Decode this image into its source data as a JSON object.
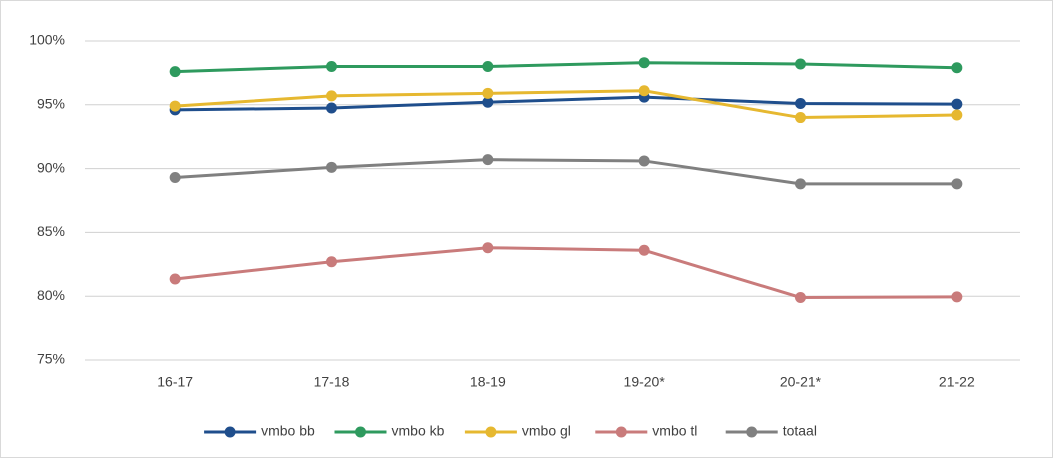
{
  "chart_data": {
    "type": "line",
    "categories": [
      "16-17",
      "17-18",
      "18-19",
      "19-20*",
      "20-21*",
      "21-22"
    ],
    "series": [
      {
        "name": "vmbo bb",
        "color": "#1f4e8c",
        "values": [
          94.6,
          94.75,
          95.2,
          95.6,
          95.1,
          95.05
        ]
      },
      {
        "name": "vmbo kb",
        "color": "#2e9a5e",
        "values": [
          97.6,
          98.0,
          98.0,
          98.3,
          98.2,
          97.9
        ]
      },
      {
        "name": "vmbo gl",
        "color": "#e6b830",
        "values": [
          94.9,
          95.7,
          95.9,
          96.1,
          94.0,
          94.2
        ]
      },
      {
        "name": "vmbo tl",
        "color": "#c97b7b",
        "values": [
          81.35,
          82.7,
          83.8,
          83.6,
          79.9,
          79.95
        ]
      },
      {
        "name": "totaal",
        "color": "#808080",
        "values": [
          89.3,
          90.1,
          90.7,
          90.6,
          88.8,
          88.8
        ]
      }
    ],
    "ylim": [
      75,
      100
    ],
    "yticks": [
      {
        "value": 75,
        "label": "75%"
      },
      {
        "value": 80,
        "label": "80%"
      },
      {
        "value": 85,
        "label": "85%"
      },
      {
        "value": 90,
        "label": "90%"
      },
      {
        "value": 95,
        "label": "95%"
      },
      {
        "value": 100,
        "label": "100%"
      }
    ],
    "grid": true,
    "legend": "bottom"
  }
}
